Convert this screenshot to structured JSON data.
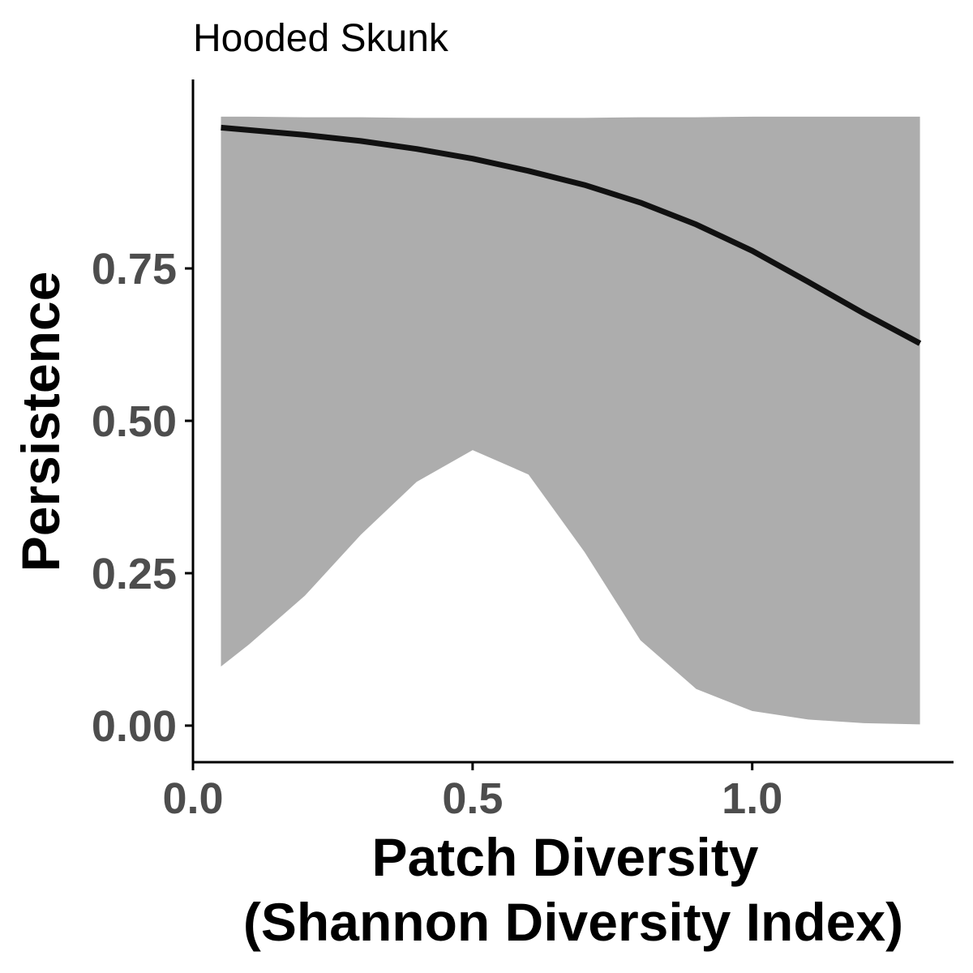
{
  "chart_data": {
    "type": "line",
    "title": "Hooded Skunk",
    "xlabel_lines": [
      "Patch Diversity",
      "(Shannon Diversity Index)"
    ],
    "ylabel": "Persistence",
    "xlim": [
      0.0,
      1.36
    ],
    "ylim": [
      -0.06,
      1.06
    ],
    "x_ticks": [
      0.0,
      0.5,
      1.0
    ],
    "x_tick_labels": [
      "0.0",
      "0.5",
      "1.0"
    ],
    "y_ticks": [
      0.0,
      0.25,
      0.5,
      0.75
    ],
    "y_tick_labels": [
      "0.00",
      "0.25",
      "0.50",
      "0.75"
    ],
    "grid": false,
    "colors": {
      "ribbon": "#adadad",
      "line": "#111111",
      "axis": "#000000"
    },
    "series": [
      {
        "x": [
          0.05,
          0.1,
          0.2,
          0.3,
          0.4,
          0.5,
          0.6,
          0.7,
          0.8,
          0.9,
          1.0,
          1.1,
          1.2,
          1.3
        ],
        "y": [
          0.981,
          0.977,
          0.969,
          0.959,
          0.946,
          0.93,
          0.91,
          0.887,
          0.858,
          0.822,
          0.779,
          0.728,
          0.676,
          0.627
        ],
        "lower": [
          0.097,
          0.133,
          0.213,
          0.313,
          0.4,
          0.452,
          0.412,
          0.285,
          0.14,
          0.06,
          0.024,
          0.01,
          0.004,
          0.002
        ],
        "upper": [
          0.999,
          0.999,
          0.998,
          0.998,
          0.997,
          0.997,
          0.997,
          0.997,
          0.998,
          0.998,
          0.999,
          0.999,
          0.999,
          0.999
        ]
      }
    ]
  }
}
